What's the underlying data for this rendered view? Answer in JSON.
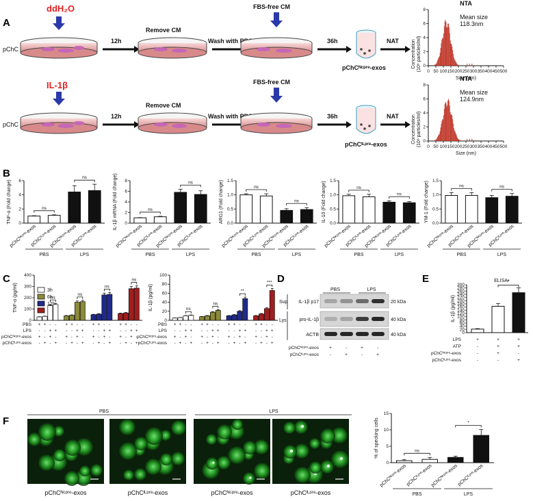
{
  "panels": {
    "A": {
      "letter": "A",
      "rows": [
        {
          "treatment": "ddH₂O",
          "start_label": "pChC",
          "arrow1": "12h",
          "step1": "Remove CM",
          "arrow2": "Wash with PBS",
          "step2": "FBS-free CM",
          "arrow3": "36h",
          "product": "pChCᴺᶜᵖʳᵉ-exos",
          "arrow4": "NAT",
          "nta": {
            "title": "NTA",
            "annotation": "Mean size\n118.3nm",
            "xlabel": "Size (nm)",
            "ylabel": "Concentration\n(10⁸ particles/ml)",
            "xticks": [
              0,
              50,
              100,
              150,
              200,
              250,
              300,
              350,
              400,
              450,
              500
            ],
            "yticks": [
              0,
              2,
              4,
              6,
              8
            ],
            "peak": 118.3,
            "width": 28,
            "max": 6.8
          }
        },
        {
          "treatment": "IL-1β",
          "start_label": "pChC",
          "arrow1": "12h",
          "step1": "Remove CM",
          "arrow2": "Wash with PBS",
          "step2": "FBS-free CM",
          "arrow3": "36h",
          "product": "pChCᴵᴸᵖʳᵉ-exos",
          "arrow4": "NAT",
          "nta": {
            "title": "NTA",
            "annotation": "Mean size\n124.9nm",
            "xlabel": "Size (nm)",
            "ylabel": "Concentration\n(10⁸ particles/ml)",
            "xticks": [
              0,
              50,
              100,
              150,
              200,
              250,
              300,
              350,
              400,
              450,
              500
            ],
            "yticks": [
              0,
              2,
              4,
              6,
              8
            ],
            "peak": 124.9,
            "width": 30,
            "max": 6.2
          }
        }
      ]
    },
    "B": {
      "letter": "B",
      "xlabels": [
        "pChCᴺᶜᵖʳᵉ-exos",
        "pChCᴵᴸᵖʳᵉ-exos",
        "pChCᴺᶜᵖʳᵉ-exos",
        "pChCᴵᴸᵖʳᵉ-exos"
      ],
      "groups": [
        "PBS",
        "LPS"
      ],
      "charts": [
        {
          "ylabel": "TNF-α (Fold change)",
          "yticks": [
            0,
            2,
            4,
            6
          ],
          "ymax": 6,
          "values": [
            1.0,
            1.1,
            4.4,
            4.6
          ],
          "errors": [
            0.05,
            0.08,
            0.9,
            0.9
          ],
          "ns": [
            "ns",
            "ns"
          ]
        },
        {
          "ylabel": "IL-1β mRNA (Fold change)",
          "yticks": [
            0,
            2,
            4,
            6,
            8
          ],
          "ymax": 8,
          "values": [
            1.0,
            1.2,
            5.8,
            5.4
          ],
          "errors": [
            0.05,
            0.1,
            0.6,
            0.7
          ],
          "ns": [
            "ns",
            "ns"
          ]
        },
        {
          "ylabel": "ARG1 (Fold change)",
          "yticks": [
            0.0,
            0.5,
            1.0,
            1.5
          ],
          "ymax": 1.5,
          "values": [
            1.0,
            0.96,
            0.45,
            0.48
          ],
          "errors": [
            0.04,
            0.08,
            0.06,
            0.07
          ],
          "ns": [
            "ns",
            "ns"
          ]
        },
        {
          "ylabel": "IL-10 (Fold change)",
          "yticks": [
            0.0,
            0.5,
            1.0,
            1.5
          ],
          "ymax": 1.5,
          "values": [
            0.97,
            0.93,
            0.74,
            0.72
          ],
          "errors": [
            0.05,
            0.09,
            0.05,
            0.04
          ],
          "ns": [
            "ns",
            "ns"
          ]
        },
        {
          "ylabel": "YM-1 (Fold change)",
          "yticks": [
            0.0,
            0.5,
            1.0,
            1.5
          ],
          "ymax": 1.5,
          "values": [
            0.98,
            0.98,
            0.9,
            0.95
          ],
          "errors": [
            0.1,
            0.1,
            0.08,
            0.1
          ],
          "ns": [
            "ns",
            "ns"
          ]
        }
      ]
    },
    "C": {
      "letter": "C",
      "legend": [
        "3h",
        "6h",
        "12h",
        "18h"
      ],
      "colors": [
        "#ffffff",
        "#8a8a3a",
        "#1f2a8a",
        "#a01e1e"
      ],
      "row_labels": [
        "PBS",
        "LPS",
        "pChCᴺᶜᵖʳᵉ-exos",
        "pChCᴵᴸᵖʳᵉ-exos"
      ],
      "signs": [
        [
          "+",
          "+",
          "-",
          "-"
        ],
        [
          "-",
          "-",
          "+",
          "+"
        ],
        [
          "+",
          "-",
          "+",
          "-"
        ],
        [
          "-",
          "+",
          "-",
          "+"
        ]
      ],
      "charts": [
        {
          "ylabel": "TNF-α (pg/ml)",
          "yticks": [
            0,
            100,
            200,
            300,
            400
          ],
          "ymax": 400,
          "values": [
            [
              30,
              35,
              130,
              140
            ],
            [
              40,
              45,
              160,
              165
            ],
            [
              50,
              55,
              225,
              230
            ],
            [
              60,
              65,
              280,
              285
            ]
          ],
          "sig": [
            "ns",
            "ns",
            "ns",
            "ns"
          ]
        },
        {
          "ylabel": "IL-1β (pg/ml)",
          "yticks": [
            0,
            20,
            40,
            60,
            80,
            100
          ],
          "ymax": 100,
          "values": [
            [
              5,
              6,
              10,
              11
            ],
            [
              8,
              10,
              18,
              22
            ],
            [
              10,
              12,
              20,
              48
            ],
            [
              10,
              14,
              26,
              66
            ]
          ],
          "sig": [
            "ns",
            "ns",
            "**",
            "***"
          ]
        }
      ]
    },
    "D": {
      "letter": "D",
      "groups": [
        "PBS",
        "LPS"
      ],
      "rows": [
        "IL-1β p17",
        "pro-IL-1β",
        "ACTB"
      ],
      "sections": [
        "Sup",
        "Lys"
      ],
      "kda": [
        "20 kDa",
        "40 kDa",
        "40 kDa"
      ],
      "row_labels": [
        "pChCᴺᶜᵖʳᵉ-exos",
        "pChCᴵᴸᵖʳᵉ-exos"
      ],
      "signs": [
        [
          "+",
          "-",
          "+",
          "-"
        ],
        [
          "-",
          "+",
          "-",
          "+"
        ]
      ]
    },
    "E": {
      "letter": "E",
      "title": "ELISA",
      "ylabel": "IL-1β (pg/ml)",
      "yticks": [
        0,
        20,
        40,
        60,
        80,
        100,
        120,
        140,
        160,
        180,
        200,
        220,
        240,
        260,
        280,
        300
      ],
      "values": [
        22,
        165,
        250
      ],
      "errors": [
        3,
        18,
        30
      ],
      "sig": "*",
      "row_labels": [
        "LPS",
        "ATP",
        "pChCᴺᶜᵖʳᵉ-exos",
        "pChCᴵᴸᵖʳᵉ-exos"
      ],
      "signs": [
        [
          "+",
          "+",
          "+"
        ],
        [
          "-",
          "+",
          "+"
        ],
        [
          "-",
          "+",
          "-"
        ],
        [
          "-",
          "-",
          "+"
        ]
      ]
    },
    "F": {
      "letter": "F",
      "groups": [
        "PBS",
        "LPS"
      ],
      "image_labels": [
        "pChCᴺᶜᵖʳᵉ-exos",
        "pChCᴵᴸᵖʳᵉ-exos",
        "pChCᴺᶜᵖʳᵉ-exos",
        "pChCᴵᴸᵖʳᵉ-exos"
      ],
      "chart": {
        "ylabel": "% of specking cells",
        "yticks": [
          0,
          5,
          10,
          15
        ],
        "ymax": 15,
        "values": [
          0.6,
          1.0,
          1.6,
          8.3
        ],
        "errors": [
          0.3,
          0.6,
          0.4,
          1.8
        ],
        "sig": [
          "ns",
          "*"
        ]
      }
    }
  }
}
